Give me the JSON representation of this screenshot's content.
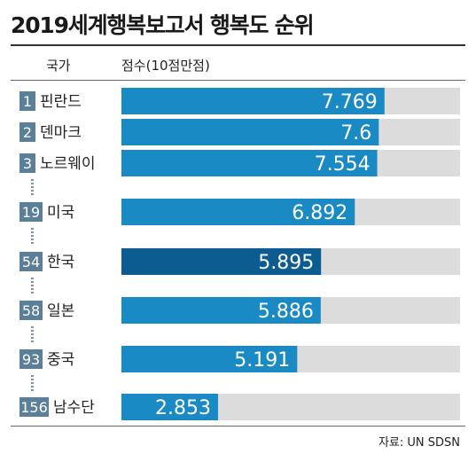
{
  "header": {
    "title": "2019세계행복보고서 행복도 순위",
    "col_country": "국가",
    "col_score": "점수(10점만점)"
  },
  "source": "자료: UN SDSN",
  "colors": {
    "bar": "#1a8ac4",
    "highlight_bar": "#0d5c91",
    "track": "#dcdcdc",
    "rank_badge": "#5b7f98",
    "dots": "#7a98ab"
  },
  "chart_data": {
    "type": "bar",
    "orientation": "horizontal",
    "max": 10,
    "highlight": "한국",
    "categories": [
      "핀란드",
      "덴마크",
      "노르웨이",
      "미국",
      "한국",
      "일본",
      "중국",
      "남수단"
    ],
    "ranks": [
      "1",
      "2",
      "3",
      "19",
      "54",
      "58",
      "93",
      "156"
    ],
    "values": [
      7.769,
      7.6,
      7.554,
      6.892,
      5.895,
      5.886,
      5.191,
      2.853
    ],
    "value_labels": [
      "7.769",
      "7.6",
      "7.554",
      "6.892",
      "5.895",
      "5.886",
      "5.191",
      "2.853"
    ]
  }
}
